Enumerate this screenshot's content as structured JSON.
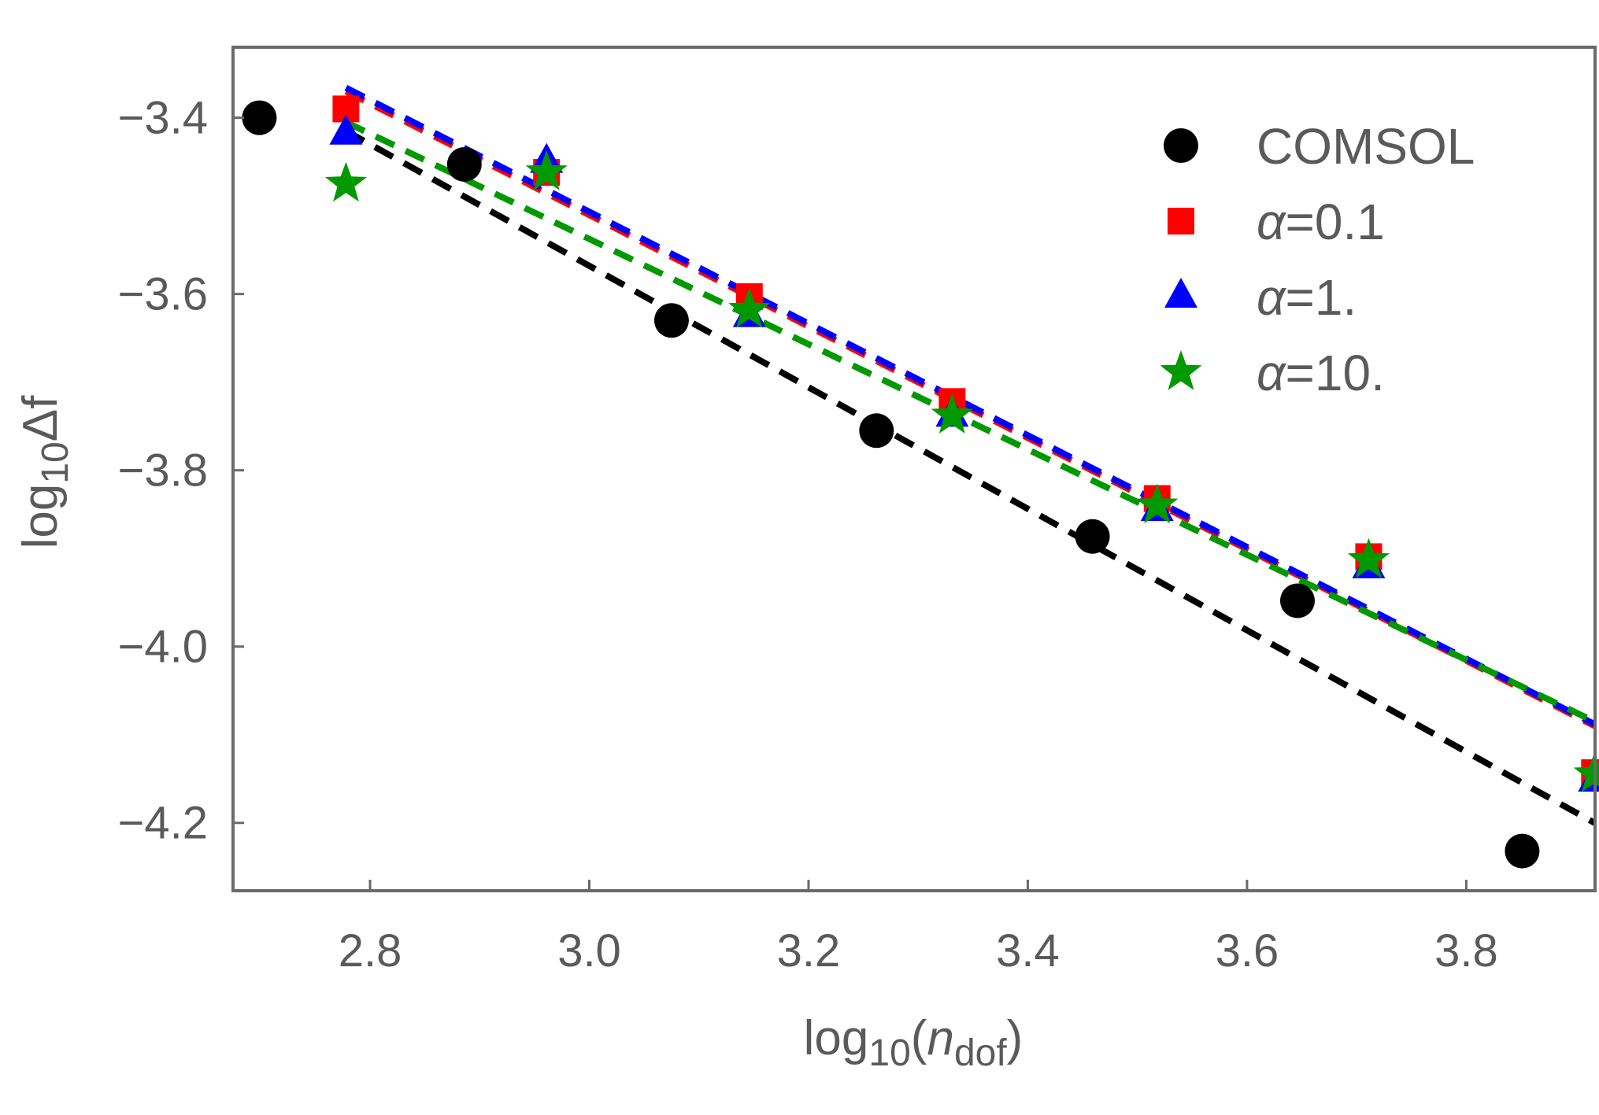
{
  "chart_data": {
    "type": "scatter",
    "xlabel": {
      "prefix": "log",
      "sub": "10",
      "open": "(",
      "var": "n",
      "varsub": "dof",
      "close": ")"
    },
    "ylabel": {
      "prefix": "log",
      "sub": "10",
      "suffix": "Δf"
    },
    "xlim": [
      2.675,
      3.9175
    ],
    "ylim": [
      -4.277,
      -3.32
    ],
    "xticks": [
      "2.8",
      "3.0",
      "3.2",
      "3.4",
      "3.6",
      "3.8"
    ],
    "yticks": [
      "-3.4",
      "-3.6",
      "-3.8",
      "-4.0",
      "-4.2"
    ],
    "tick_values_x": [
      2.8,
      3.0,
      3.2,
      3.4,
      3.6,
      3.8
    ],
    "tick_values_y": [
      -3.4,
      -3.6,
      -3.8,
      -4.0,
      -4.2
    ],
    "legend_position": "top-right",
    "series": [
      {
        "name": "COMSOL",
        "marker": "circle",
        "color": "#000000",
        "x": [
          2.699,
          2.886,
          3.075,
          3.262,
          3.459,
          3.646,
          3.851
        ],
        "y": [
          -3.4,
          -3.453,
          -3.63,
          -3.755,
          -3.875,
          -3.948,
          -4.232
        ],
        "fit": {
          "x": [
            2.778,
            3.917
          ],
          "y": [
            -3.415,
            -4.2
          ]
        }
      },
      {
        "name": "α=0.1",
        "marker": "square",
        "color": "#ff0000",
        "x": [
          2.778,
          2.961,
          3.146,
          3.331,
          3.518,
          3.711,
          3.917
        ],
        "y": [
          -3.39,
          -3.462,
          -3.603,
          -3.722,
          -3.832,
          -3.898,
          -4.143
        ],
        "fit": {
          "x": [
            2.778,
            3.917
          ],
          "y": [
            -3.37,
            -4.09
          ]
        }
      },
      {
        "name": "α=1.",
        "marker": "triangle",
        "color": "#0000ff",
        "x": [
          2.778,
          2.961,
          3.146,
          3.331,
          3.518,
          3.711,
          3.917
        ],
        "y": [
          -3.418,
          -3.45,
          -3.625,
          -3.738,
          -3.845,
          -3.91,
          -4.152
        ],
        "fit": {
          "x": [
            2.778,
            3.917
          ],
          "y": [
            -3.366,
            -4.088
          ]
        }
      },
      {
        "name": "α=10.",
        "marker": "star",
        "color": "#009900",
        "x": [
          2.778,
          2.961,
          3.146,
          3.331,
          3.518,
          3.711,
          3.917
        ],
        "y": [
          -3.475,
          -3.462,
          -3.618,
          -3.738,
          -3.84,
          -3.902,
          -4.145
        ],
        "fit": {
          "x": [
            2.778,
            3.917
          ],
          "y": [
            -3.405,
            -4.085
          ]
        }
      }
    ]
  }
}
